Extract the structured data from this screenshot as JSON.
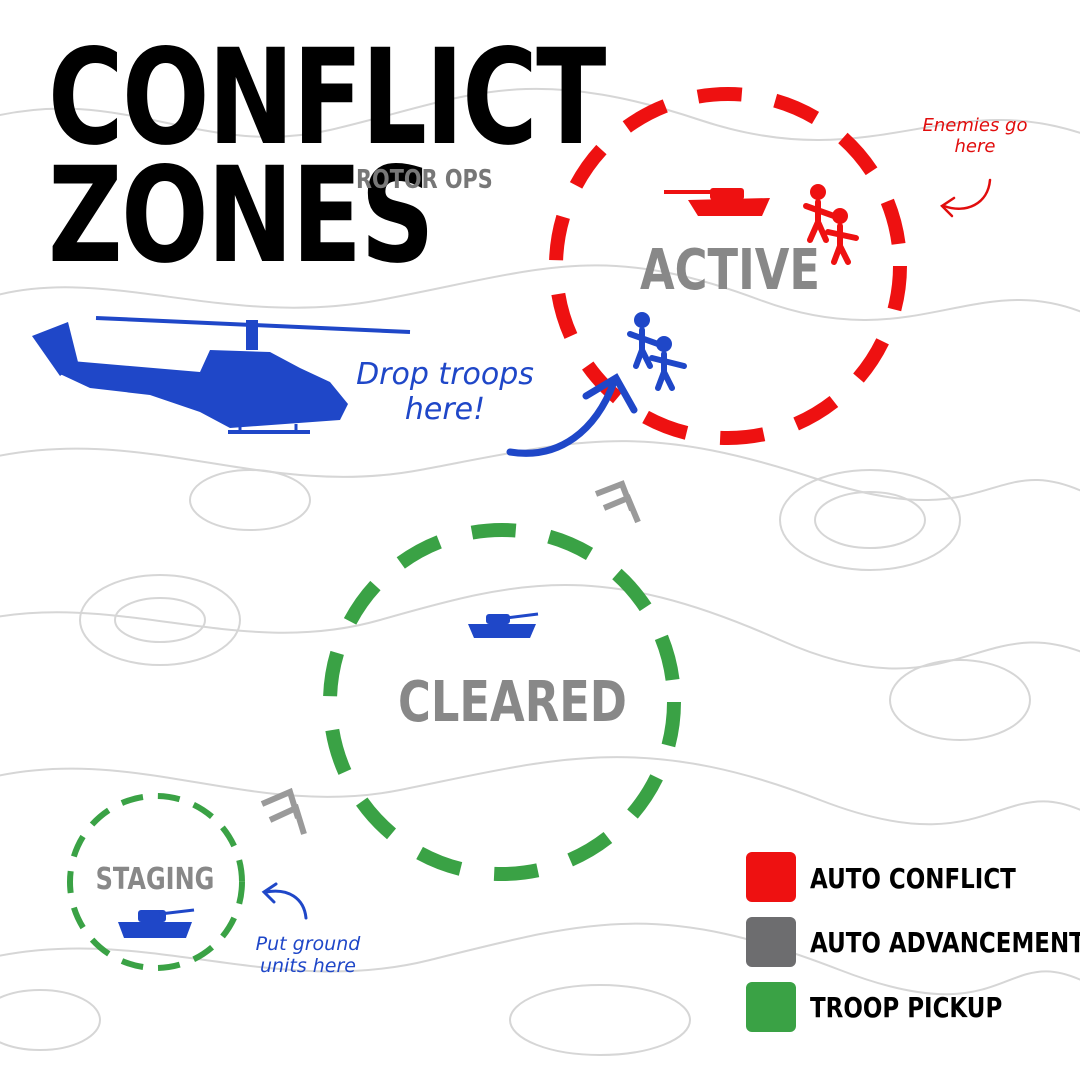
{
  "title": {
    "line1": "CONFLICT",
    "line2": "ZONES",
    "subtitle": "ROTOR OPS"
  },
  "zones": {
    "active": {
      "label": "ACTIVE",
      "color": "#ee1111"
    },
    "cleared": {
      "label": "CLEARED",
      "color": "#3aa245"
    },
    "staging": {
      "label": "STAGING",
      "color": "#3aa245"
    }
  },
  "notes": {
    "enemies": "Enemies go here",
    "drop": "Drop troops here!",
    "ground": "Put ground units here"
  },
  "legend": [
    {
      "label": "AUTO CONFLICT",
      "color": "#ee1111"
    },
    {
      "label": "AUTO ADVANCEMENT",
      "color": "#6d6d6f"
    },
    {
      "label": "TROOP PICKUP",
      "color": "#3aa245"
    }
  ],
  "colors": {
    "unit_blue": "#1f47c8",
    "enemy_red": "#ee1111",
    "advance_gray": "#9a9a9a"
  }
}
